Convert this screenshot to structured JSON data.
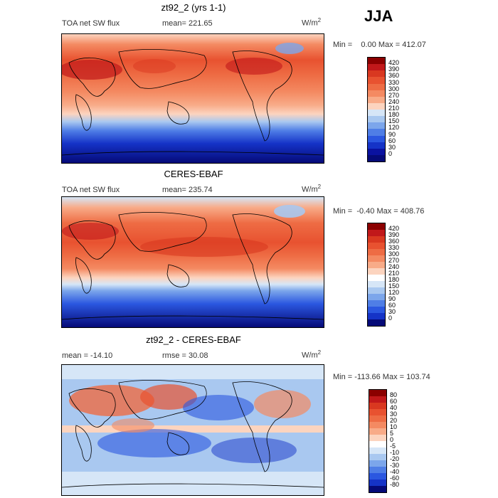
{
  "season": "JJA",
  "panels": [
    {
      "title": "zt92_2 (yrs 1-1)",
      "left_label": "TOA net SW flux",
      "stat_label": "mean=  221.65",
      "units": "W/m",
      "units_exp": "2",
      "minmax": "Min =    0.00 Max = 412.07",
      "cbar_labels": [
        "420",
        "390",
        "360",
        "330",
        "300",
        "270",
        "240",
        "210",
        "180",
        "150",
        "120",
        "90",
        "60",
        "30",
        "0"
      ],
      "cbar_colors": [
        "#8b0000",
        "#c1181a",
        "#d93820",
        "#e85230",
        "#ee6c44",
        "#f48a62",
        "#f8ab88",
        "#fcd4bf",
        "#d6e6f7",
        "#a9c8f0",
        "#7ca6eb",
        "#4f7ee6",
        "#2b57e0",
        "#1533c7",
        "#0a12a0",
        "#050a78"
      ]
    },
    {
      "title": "CERES-EBAF",
      "left_label": "TOA net SW flux",
      "stat_label": "mean=  235.74",
      "units": "W/m",
      "units_exp": "2",
      "minmax": "Min =  -0.40 Max = 408.76",
      "cbar_labels": [
        "420",
        "390",
        "360",
        "330",
        "300",
        "270",
        "240",
        "210",
        "180",
        "150",
        "120",
        "90",
        "60",
        "30",
        "0"
      ],
      "cbar_colors": [
        "#8b0000",
        "#c1181a",
        "#d93820",
        "#e85230",
        "#ee6c44",
        "#f48a62",
        "#f8ab88",
        "#fcd4bf",
        "#ffffff",
        "#d6e6f7",
        "#a9c8f0",
        "#7ca6eb",
        "#4f7ee6",
        "#2b57e0",
        "#1533c7",
        "#050a78"
      ]
    },
    {
      "title": "zt92_2 - CERES-EBAF",
      "left_label": "mean = -14.10",
      "stat_label": "rmse =  30.08",
      "units": "W/m",
      "units_exp": "2",
      "minmax": "Min = -113.66 Max = 103.74",
      "cbar_labels": [
        "80",
        "60",
        "40",
        "30",
        "20",
        "10",
        "5",
        "0",
        "-5",
        "-10",
        "-20",
        "-30",
        "-40",
        "-60",
        "-80"
      ],
      "cbar_colors": [
        "#8b0000",
        "#c1181a",
        "#d93820",
        "#e85230",
        "#ee6c44",
        "#f48a62",
        "#f8ab88",
        "#fcd4bf",
        "#ffffff",
        "#d6e6f7",
        "#a9c8f0",
        "#7ca6eb",
        "#4f7ee6",
        "#2b57e0",
        "#1533c7",
        "#050a78"
      ]
    }
  ],
  "chart_data": [
    {
      "type": "heatmap",
      "title": "zt92_2 (yrs 1-1)",
      "variable": "TOA net SW flux",
      "mean": 221.65,
      "min": 0.0,
      "max": 412.07,
      "units": "W/m2",
      "levels": [
        0,
        30,
        60,
        90,
        120,
        150,
        180,
        210,
        240,
        270,
        300,
        330,
        360,
        390,
        420
      ]
    },
    {
      "type": "heatmap",
      "title": "CERES-EBAF",
      "variable": "TOA net SW flux",
      "mean": 235.74,
      "min": -0.4,
      "max": 408.76,
      "units": "W/m2",
      "levels": [
        0,
        30,
        60,
        90,
        120,
        150,
        180,
        210,
        240,
        270,
        300,
        330,
        360,
        390,
        420
      ]
    },
    {
      "type": "heatmap",
      "title": "zt92_2 - CERES-EBAF",
      "mean": -14.1,
      "rmse": 30.08,
      "min": -113.66,
      "max": 103.74,
      "units": "W/m2",
      "levels": [
        -80,
        -60,
        -40,
        -30,
        -20,
        -10,
        -5,
        0,
        5,
        10,
        20,
        30,
        40,
        60,
        80
      ]
    }
  ]
}
